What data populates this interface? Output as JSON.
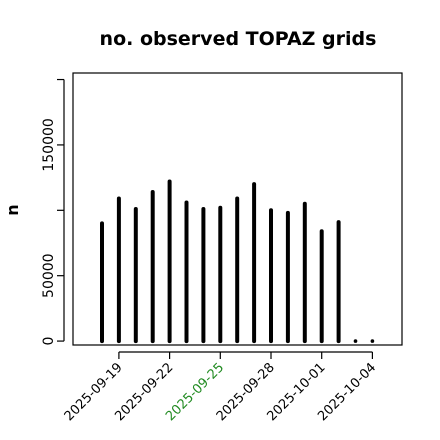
{
  "chart_data": {
    "type": "bar",
    "title": "no. observed TOPAZ grids",
    "ylabel": "n",
    "xlabel": "",
    "ylim": [
      -3000,
      205000
    ],
    "yticks": [
      0,
      50000,
      150000
    ],
    "ytick_labels": [
      "0",
      "50000",
      "150000"
    ],
    "x_start": "2025-09-18",
    "categories": [
      "2025-09-18",
      "2025-09-19",
      "2025-09-20",
      "2025-09-21",
      "2025-09-22",
      "2025-09-23",
      "2025-09-24",
      "2025-09-25",
      "2025-09-26",
      "2025-09-27",
      "2025-09-28",
      "2025-09-29",
      "2025-09-30",
      "2025-10-01",
      "2025-10-02",
      "2025-10-03",
      "2025-10-04"
    ],
    "values": [
      90000,
      109000,
      101000,
      114000,
      122000,
      106000,
      101000,
      102000,
      109000,
      120000,
      100000,
      98000,
      105000,
      84000,
      91000,
      0,
      0
    ],
    "xtick_labels": [
      {
        "date": "2025-09-19",
        "label": "2025-09-19",
        "color": "#000000"
      },
      {
        "date": "2025-09-22",
        "label": "2025-09-22",
        "color": "#000000"
      },
      {
        "date": "2025-09-25",
        "label": "2025-09-25",
        "color": "#228B22"
      },
      {
        "date": "2025-09-28",
        "label": "2025-09-28",
        "color": "#000000"
      },
      {
        "date": "2025-10-01",
        "label": "2025-10-01",
        "color": "#000000"
      },
      {
        "date": "2025-10-04",
        "label": "2025-10-04",
        "color": "#000000"
      }
    ],
    "grid": false,
    "bar_color": "#000000"
  }
}
